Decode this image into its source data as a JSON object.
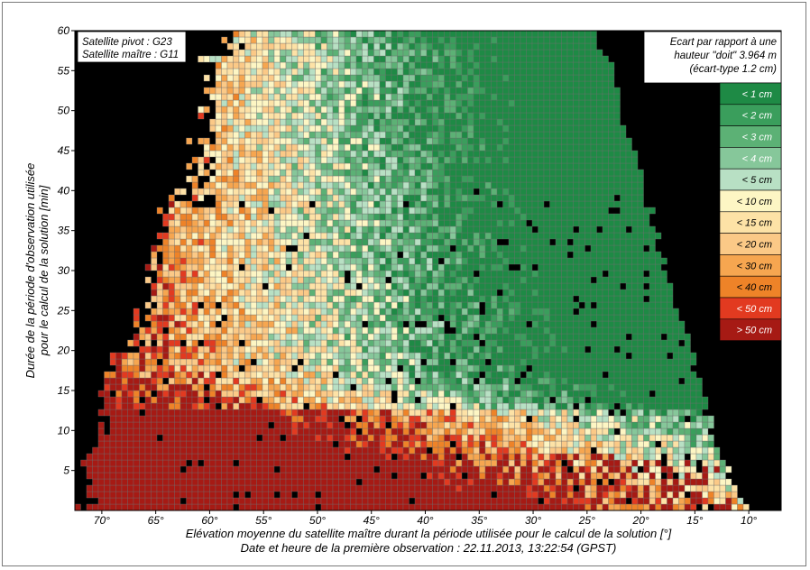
{
  "chart_data": {
    "type": "heatmap",
    "title": "",
    "xlabel": "Elévation moyenne du satellite maître durant la période utilisée pour le calcul de la solution [°]",
    "subtitle": "Date et heure de la première observation : 22.11.2013, 13:22:54 (GPST)",
    "ylabel_line1": "Durée de la période d'observation utilisée",
    "ylabel_line2": "pour le calcul de la solution [min]",
    "xlim": [
      72.5,
      7
    ],
    "ylim": [
      0,
      60
    ],
    "x_ticks": [
      "70°",
      "65°",
      "60°",
      "55°",
      "50°",
      "45°",
      "40°",
      "35°",
      "30°",
      "25°",
      "20°",
      "15°",
      "10°"
    ],
    "y_ticks": [
      "5",
      "10",
      "15",
      "20",
      "25",
      "30",
      "35",
      "40",
      "45",
      "50",
      "55",
      "60"
    ],
    "annotation_pivot": "Satellite pivot : G23",
    "annotation_master": "Satellite maître : G11",
    "legend_title_line1": "Ecart par rapport à une",
    "legend_title_line2": "hauteur \"doit\" 3.964 m",
    "legend_title_line3": "(écart-type 1.2 cm)",
    "legend_entries": [
      {
        "label": "< 1 cm",
        "color": "#1e8a45"
      },
      {
        "label": "< 2 cm",
        "color": "#3a9e5c"
      },
      {
        "label": "< 3 cm",
        "color": "#5cb175"
      },
      {
        "label": "< 4 cm",
        "color": "#86c79a"
      },
      {
        "label": "< 5 cm",
        "color": "#b8e0c4"
      },
      {
        "label": "< 10 cm",
        "color": "#fdf6c4"
      },
      {
        "label": "< 15 cm",
        "color": "#fde2a6"
      },
      {
        "label": "< 20 cm",
        "color": "#fbc987"
      },
      {
        "label": "< 30 cm",
        "color": "#f6a650"
      },
      {
        "label": "< 40 cm",
        "color": "#ee8328"
      },
      {
        "label": "< 50 cm",
        "color": "#e23a20"
      },
      {
        "label": "> 50 cm",
        "color": "#a61a14"
      }
    ],
    "colors": {
      "background": "#000000",
      "grid": "#6e6e6e"
    }
  }
}
